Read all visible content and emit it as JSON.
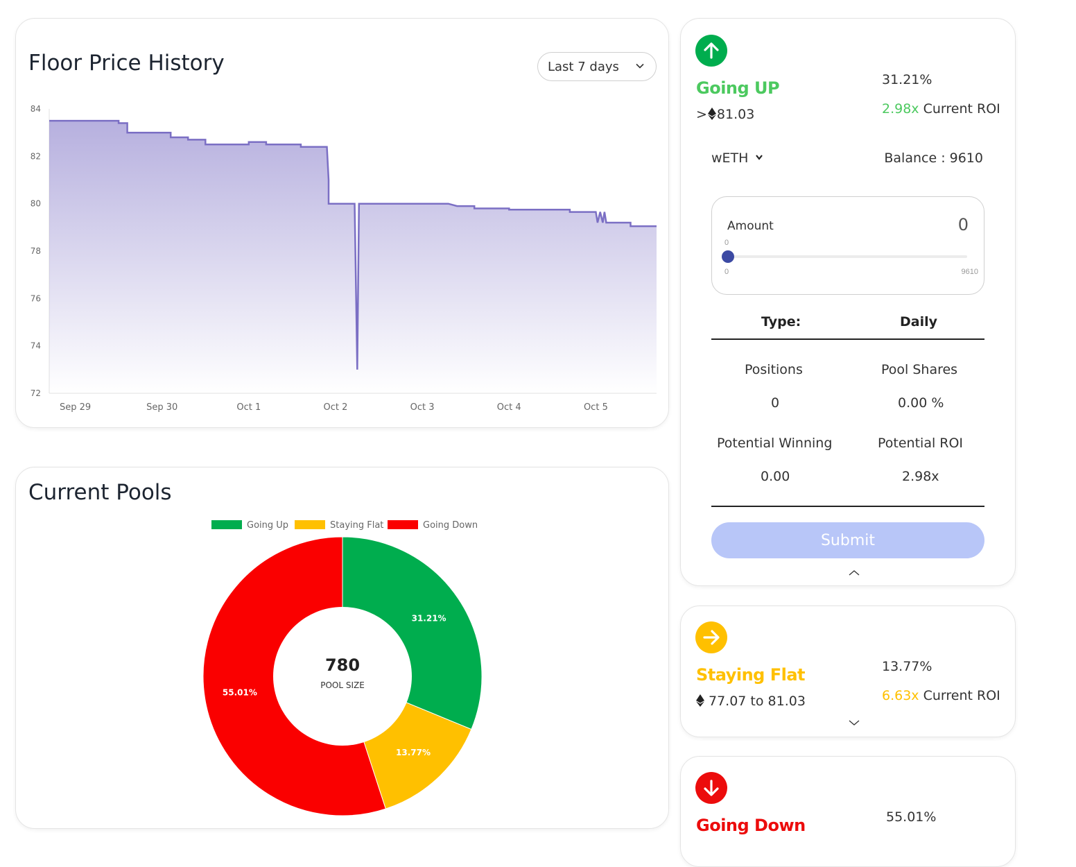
{
  "floor_price": {
    "title": "Floor Price History",
    "range_selected": "Last 7 days",
    "chart_data": {
      "type": "area",
      "x_ticks": [
        "Sep 29",
        "Sep 30",
        "Oct 1",
        "Oct 2",
        "Oct 3",
        "Oct 4",
        "Oct 5"
      ],
      "y_ticks": [
        84,
        82,
        80,
        78,
        76,
        74,
        72
      ],
      "ylim": [
        72,
        84
      ],
      "grid": false,
      "line_color": "#7b6fc4",
      "x_unit": "days since Sep 29",
      "series": [
        {
          "points": [
            [
              -0.3,
              83.5
            ],
            [
              0.5,
              83.5
            ],
            [
              0.5,
              83.4
            ],
            [
              0.6,
              83.4
            ],
            [
              0.6,
              83.0
            ],
            [
              1.1,
              83.0
            ],
            [
              1.1,
              82.8
            ],
            [
              1.3,
              82.8
            ],
            [
              1.3,
              82.7
            ],
            [
              1.5,
              82.7
            ],
            [
              1.5,
              82.5
            ],
            [
              2.0,
              82.5
            ],
            [
              2.0,
              82.6
            ],
            [
              2.2,
              82.6
            ],
            [
              2.2,
              82.5
            ],
            [
              2.6,
              82.5
            ],
            [
              2.6,
              82.4
            ],
            [
              2.9,
              82.4
            ],
            [
              2.9,
              82.4
            ],
            [
              2.92,
              81.0
            ],
            [
              2.92,
              80.0
            ],
            [
              3.22,
              80.0
            ],
            [
              3.25,
              73.0
            ],
            [
              3.27,
              80.0
            ],
            [
              4.3,
              80.0
            ],
            [
              4.4,
              79.9
            ],
            [
              4.6,
              79.9
            ],
            [
              4.6,
              79.8
            ],
            [
              5.0,
              79.8
            ],
            [
              5.0,
              79.75
            ],
            [
              5.7,
              79.75
            ],
            [
              5.7,
              79.65
            ],
            [
              6.0,
              79.65
            ],
            [
              6.02,
              79.2
            ],
            [
              6.05,
              79.65
            ],
            [
              6.08,
              79.2
            ],
            [
              6.1,
              79.65
            ],
            [
              6.12,
              79.2
            ],
            [
              6.4,
              79.2
            ],
            [
              6.4,
              79.05
            ],
            [
              6.7,
              79.05
            ]
          ]
        }
      ]
    }
  },
  "current_pools": {
    "title": "Current Pools",
    "chart_data": {
      "type": "pie",
      "legend_position": "top",
      "series": [
        {
          "name": "Going Up",
          "value": 31.21,
          "label": "31.21%",
          "color": "#00ad4e"
        },
        {
          "name": "Staying Flat",
          "value": 13.77,
          "label": "13.77%",
          "color": "#ffc000"
        },
        {
          "name": "Going Down",
          "value": 55.01,
          "label": "55.01%",
          "color": "#fa0000"
        }
      ],
      "center_value": "780",
      "center_label": "POOL SIZE"
    }
  },
  "going_up": {
    "title": "Going UP",
    "percent": "31.21%",
    "price_prefix": ">",
    "price": "81.03",
    "roi_value": "2.98x",
    "roi_label": "Current ROI",
    "token": "wETH",
    "balance": "Balance : 9610",
    "amount_label": "Amount",
    "amount_value": "0",
    "slider_current": "0",
    "slider_min": "0",
    "slider_max": "9610",
    "type_label": "Type:",
    "type_value": "Daily",
    "positions_label": "Positions",
    "positions_value": "0",
    "pool_shares_label": "Pool Shares",
    "pool_shares_value": "0.00 %",
    "potential_winning_label": "Potential Winning",
    "potential_winning_value": "0.00",
    "potential_roi_label": "Potential ROI",
    "potential_roi_value": "2.98x",
    "submit_label": "Submit",
    "color": "#00ad4e",
    "title_color": "#4cc95f"
  },
  "staying_flat": {
    "title": "Staying Flat",
    "percent": "13.77%",
    "price_range": "77.07 to 81.03",
    "roi_value": "6.63x",
    "roi_label": "Current ROI",
    "color": "#ffc000"
  },
  "going_down": {
    "title": "Going Down",
    "percent": "55.01%",
    "color": "#ec0c0c"
  }
}
